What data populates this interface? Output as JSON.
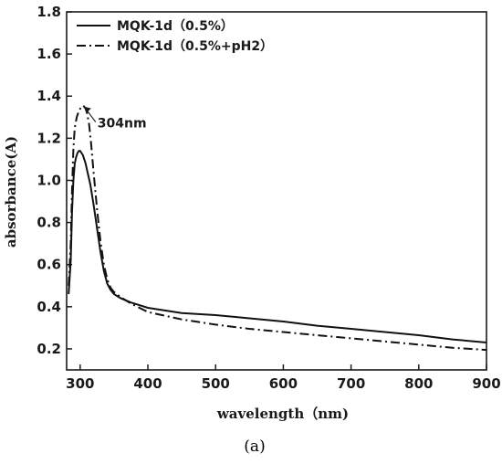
{
  "chart_data": {
    "type": "line",
    "xlabel": "wavelength（nm)",
    "ylabel": "absorbance(A)",
    "xlim": [
      280,
      900
    ],
    "ylim": [
      0.1,
      1.8
    ],
    "x_ticks": [
      "300",
      "400",
      "500",
      "600",
      "700",
      "800",
      "900"
    ],
    "y_ticks": [
      "0.2",
      "0.4",
      "0.6",
      "0.8",
      "1.0",
      "1.2",
      "1.4",
      "1.6",
      "1.8"
    ],
    "legend_position": "top-left",
    "series": [
      {
        "name": "MQK-1d（0.5%）",
        "style": "solid",
        "x": [
          283,
          286,
          288,
          290,
          292,
          294,
          296,
          298,
          300,
          302,
          304,
          306,
          308,
          310,
          315,
          320,
          325,
          330,
          335,
          340,
          345,
          350,
          360,
          375,
          400,
          450,
          500,
          550,
          600,
          650,
          700,
          750,
          800,
          850,
          900
        ],
        "y": [
          0.46,
          0.62,
          0.85,
          1.0,
          1.08,
          1.11,
          1.13,
          1.14,
          1.14,
          1.13,
          1.12,
          1.1,
          1.08,
          1.05,
          0.98,
          0.88,
          0.77,
          0.66,
          0.57,
          0.51,
          0.48,
          0.46,
          0.44,
          0.42,
          0.395,
          0.37,
          0.36,
          0.345,
          0.33,
          0.31,
          0.295,
          0.28,
          0.265,
          0.245,
          0.23
        ]
      },
      {
        "name": "MQK-1d（0.5%+pH2）",
        "style": "dashdot",
        "x": [
          283,
          286,
          288,
          290,
          292,
          295,
          298,
          300,
          302,
          304,
          306,
          308,
          310,
          313,
          316,
          320,
          325,
          330,
          335,
          340,
          345,
          350,
          360,
          375,
          400,
          450,
          500,
          550,
          600,
          650,
          700,
          750,
          800,
          850,
          900
        ],
        "y": [
          0.5,
          0.7,
          0.95,
          1.15,
          1.25,
          1.3,
          1.33,
          1.34,
          1.35,
          1.355,
          1.35,
          1.34,
          1.32,
          1.27,
          1.18,
          1.03,
          0.86,
          0.71,
          0.6,
          0.53,
          0.49,
          0.47,
          0.445,
          0.415,
          0.375,
          0.34,
          0.315,
          0.295,
          0.28,
          0.265,
          0.25,
          0.235,
          0.22,
          0.205,
          0.195
        ]
      }
    ],
    "annotations": [
      {
        "text": "304nm",
        "x": 304,
        "y": 1.355
      }
    ],
    "caption": "(a)"
  }
}
